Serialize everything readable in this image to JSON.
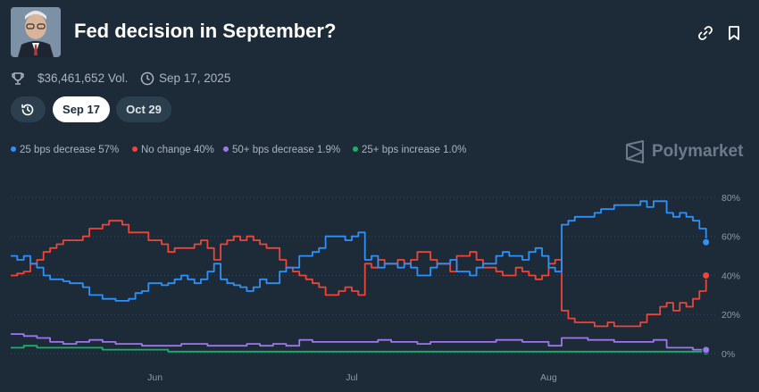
{
  "header": {
    "title": "Fed decision in September?"
  },
  "meta": {
    "volume": "$36,461,652 Vol.",
    "date": "Sep 17, 2025"
  },
  "tabs": [
    {
      "label": "Sep 17",
      "active": true
    },
    {
      "label": "Oct 29",
      "active": false
    }
  ],
  "brand": "Polymarket",
  "colors": {
    "background": "#1d2b39",
    "blue": "#2e90fa",
    "red": "#f04438",
    "purple": "#9e77ed",
    "green": "#17b26a"
  },
  "icons": [
    "trophy-icon",
    "clock-icon",
    "history-icon",
    "link-icon",
    "bookmark-icon",
    "polymarket-logo-icon"
  ],
  "chart_data": {
    "type": "line",
    "ylim": [
      0,
      85
    ],
    "yticks": [
      "0%",
      "20%",
      "40%",
      "60%",
      "80%"
    ],
    "ytick_values": [
      0,
      20,
      40,
      60,
      80
    ],
    "xticks": [
      "Jun",
      "Jul",
      "Aug"
    ],
    "xtick_positions": [
      22,
      52,
      82
    ],
    "x_range": [
      0,
      107
    ],
    "grid": "horizontal-dotted",
    "series": [
      {
        "name": "25 bps decrease",
        "label": "25 bps decrease 57%",
        "color": "#2e90fa",
        "x": [
          0,
          1,
          2,
          3,
          4,
          5,
          6,
          7,
          8,
          9,
          10,
          11,
          12,
          13,
          14,
          15,
          16,
          17,
          18,
          19,
          20,
          21,
          22,
          23,
          24,
          25,
          26,
          27,
          28,
          29,
          30,
          31,
          32,
          33,
          34,
          35,
          36,
          37,
          38,
          39,
          40,
          41,
          42,
          43,
          44,
          45,
          46,
          47,
          48,
          49,
          50,
          51,
          52,
          53,
          54,
          55,
          56,
          57,
          58,
          59,
          60,
          61,
          62,
          63,
          64,
          65,
          66,
          67,
          68,
          69,
          70,
          71,
          72,
          73,
          74,
          75,
          76,
          77,
          78,
          79,
          80,
          81,
          82,
          83,
          84,
          85,
          86,
          87,
          88,
          89,
          90,
          91,
          92,
          93,
          94,
          95,
          96,
          97,
          98,
          99,
          100,
          101,
          102,
          103,
          104,
          105,
          106
        ],
        "y": [
          50,
          48,
          50,
          46,
          44,
          40,
          38,
          38,
          37,
          36,
          36,
          34,
          30,
          30,
          28,
          28,
          27,
          27,
          28,
          31,
          32,
          36,
          36,
          35,
          36,
          38,
          40,
          38,
          36,
          38,
          42,
          46,
          38,
          36,
          35,
          34,
          32,
          34,
          38,
          36,
          36,
          42,
          44,
          44,
          50,
          50,
          52,
          54,
          60,
          60,
          60,
          58,
          60,
          62,
          48,
          50,
          44,
          46,
          46,
          44,
          46,
          44,
          40,
          40,
          44,
          46,
          46,
          48,
          42,
          42,
          40,
          44,
          46,
          46,
          50,
          52,
          50,
          50,
          48,
          52,
          54,
          50,
          44,
          42,
          66,
          68,
          70,
          70,
          70,
          72,
          74,
          74,
          76,
          76,
          76,
          76,
          78,
          75,
          78,
          78,
          72,
          70,
          72,
          70,
          68,
          64,
          57
        ]
      },
      {
        "name": "No change",
        "label": "No change 40%",
        "color": "#f04438",
        "x": [
          0,
          1,
          2,
          3,
          4,
          5,
          6,
          7,
          8,
          9,
          10,
          11,
          12,
          13,
          14,
          15,
          16,
          17,
          18,
          19,
          20,
          21,
          22,
          23,
          24,
          25,
          26,
          27,
          28,
          29,
          30,
          31,
          32,
          33,
          34,
          35,
          36,
          37,
          38,
          39,
          40,
          41,
          42,
          43,
          44,
          45,
          46,
          47,
          48,
          49,
          50,
          51,
          52,
          53,
          54,
          55,
          56,
          57,
          58,
          59,
          60,
          61,
          62,
          63,
          64,
          65,
          66,
          67,
          68,
          69,
          70,
          71,
          72,
          73,
          74,
          75,
          76,
          77,
          78,
          79,
          80,
          81,
          82,
          83,
          84,
          85,
          86,
          87,
          88,
          89,
          90,
          91,
          92,
          93,
          94,
          95,
          96,
          97,
          98,
          99,
          100,
          101,
          102,
          103,
          104,
          105,
          106
        ],
        "y": [
          40,
          41,
          42,
          46,
          48,
          52,
          54,
          56,
          58,
          58,
          58,
          60,
          64,
          64,
          66,
          68,
          68,
          66,
          62,
          62,
          62,
          58,
          58,
          56,
          52,
          54,
          54,
          54,
          56,
          58,
          54,
          48,
          56,
          58,
          60,
          58,
          60,
          58,
          56,
          54,
          54,
          48,
          44,
          42,
          40,
          38,
          36,
          34,
          30,
          30,
          32,
          34,
          32,
          30,
          46,
          44,
          48,
          46,
          46,
          48,
          46,
          48,
          52,
          52,
          48,
          46,
          46,
          42,
          50,
          50,
          52,
          48,
          44,
          44,
          42,
          40,
          40,
          44,
          42,
          40,
          38,
          40,
          46,
          48,
          22,
          18,
          16,
          16,
          16,
          14,
          14,
          16,
          14,
          14,
          14,
          14,
          16,
          20,
          20,
          24,
          26,
          22,
          26,
          24,
          28,
          32,
          40
        ]
      },
      {
        "name": "50+ bps decrease",
        "label": "50+ bps decrease 1.9%",
        "color": "#9e77ed",
        "x": [
          0,
          2,
          4,
          6,
          8,
          10,
          12,
          14,
          16,
          18,
          20,
          22,
          24,
          26,
          28,
          30,
          32,
          34,
          36,
          38,
          40,
          42,
          44,
          46,
          48,
          50,
          52,
          54,
          56,
          58,
          60,
          62,
          64,
          66,
          68,
          70,
          72,
          74,
          76,
          78,
          80,
          82,
          84,
          86,
          88,
          90,
          92,
          94,
          96,
          98,
          100,
          102,
          104,
          106
        ],
        "y": [
          10,
          9,
          8,
          6,
          5,
          6,
          7,
          6,
          5,
          5,
          4,
          4,
          4,
          5,
          5,
          4,
          4,
          4,
          5,
          4,
          5,
          4,
          7,
          6,
          6,
          6,
          6,
          6,
          7,
          6,
          6,
          5,
          6,
          6,
          6,
          6,
          6,
          7,
          7,
          6,
          6,
          4,
          8,
          8,
          7,
          7,
          6,
          6,
          6,
          7,
          3,
          3,
          2,
          1.9
        ]
      },
      {
        "name": "25+ bps increase",
        "label": "25+ bps increase 1.0%",
        "color": "#17b26a",
        "x": [
          0,
          2,
          4,
          6,
          8,
          10,
          12,
          14,
          16,
          18,
          20,
          22,
          24,
          26,
          28,
          30,
          32,
          34,
          36,
          38,
          40,
          42,
          44,
          46,
          48,
          50,
          52,
          54,
          56,
          58,
          60,
          62,
          64,
          66,
          68,
          70,
          72,
          74,
          76,
          78,
          80,
          82,
          84,
          86,
          88,
          90,
          92,
          94,
          96,
          98,
          100,
          102,
          104,
          106
        ],
        "y": [
          3,
          4,
          3,
          3,
          3,
          3,
          3,
          2,
          2,
          2,
          2,
          2,
          1,
          1,
          1,
          1,
          1,
          1,
          1,
          1,
          1,
          1,
          1,
          1,
          1,
          1,
          1,
          1,
          1,
          1,
          1,
          1,
          1,
          1,
          1,
          1,
          1,
          1,
          1,
          1,
          1,
          1,
          1,
          1,
          1,
          1,
          1,
          1,
          1,
          1,
          1,
          1,
          1,
          1.0
        ]
      }
    ]
  }
}
